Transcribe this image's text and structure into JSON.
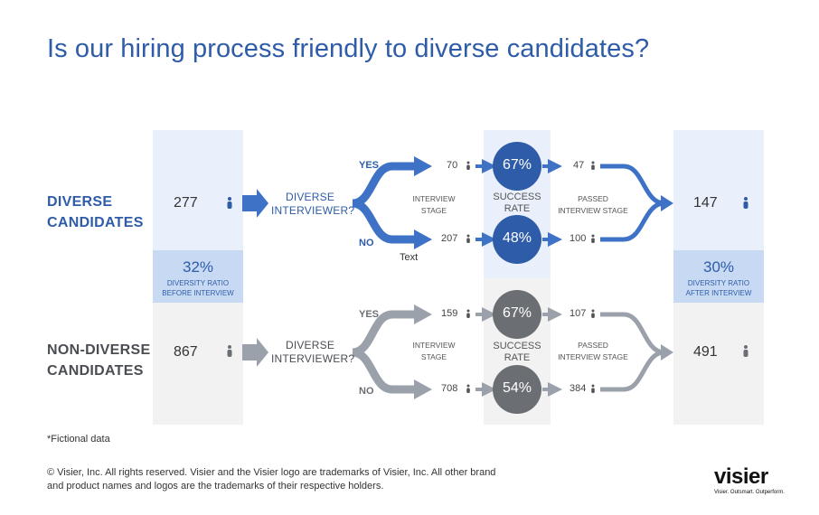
{
  "title": "Is our hiring process friendly to diverse candidates?",
  "colors": {
    "blue": "#3d72c6",
    "blue_dark": "#2e5ca8",
    "blue_light_panel": "#eaf0fb",
    "blue_ratio_panel": "#c8daf3",
    "gray": "#9ba1ab",
    "gray_dark": "#6b6f74",
    "gray_panel": "#f1f2f1"
  },
  "diverse": {
    "label_line1": "DIVERSE",
    "label_line2": "CANDIDATES",
    "count": "277",
    "question_line1": "DIVERSE",
    "question_line2": "INTERVIEWER?",
    "yes_label": "YES",
    "no_label": "NO",
    "yes_interviewed": "70",
    "no_interviewed": "207",
    "stage_line1": "INTERVIEW",
    "stage_line2": "STAGE",
    "success_line1": "SUCCESS",
    "success_line2": "RATE",
    "yes_rate": "67%",
    "no_rate": "48%",
    "yes_passed": "47",
    "no_passed": "100",
    "passed_line1": "PASSED",
    "passed_line2": "INTERVIEW STAGE",
    "total_after": "147",
    "stray_text": "Text"
  },
  "nondiverse": {
    "label_line1": "NON-DIVERSE",
    "label_line2": "CANDIDATES",
    "count": "867",
    "question_line1": "DIVERSE",
    "question_line2": "INTERVIEWER?",
    "yes_label": "YES",
    "no_label": "NO",
    "yes_interviewed": "159",
    "no_interviewed": "708",
    "stage_line1": "INTERVIEW",
    "stage_line2": "STAGE",
    "success_line1": "SUCCESS",
    "success_line2": "RATE",
    "yes_rate": "67%",
    "no_rate": "54%",
    "yes_passed": "107",
    "no_passed": "384",
    "passed_line1": "PASSED",
    "passed_line2": "INTERVIEW STAGE",
    "total_after": "491"
  },
  "ratio_before": {
    "value": "32%",
    "line1": "DIVERSITY RATIO",
    "line2": "BEFORE INTERVIEW"
  },
  "ratio_after": {
    "value": "30%",
    "line1": "DIVERSITY RATIO",
    "line2": "AFTER INTERVIEW"
  },
  "fictional_note": "*Fictional data",
  "footer_line1": "© Visier, Inc. All rights reserved. Visier and the Visier logo are trademarks of Visier, Inc. All other brand",
  "footer_line2": "and product names and logos are the trademarks of their respective holders.",
  "logo_text": "visier",
  "logo_tagline": "Visier. Outsmart. Outperform.",
  "icons": {
    "person": "person-icon",
    "arrow": "arrow-right-icon"
  }
}
